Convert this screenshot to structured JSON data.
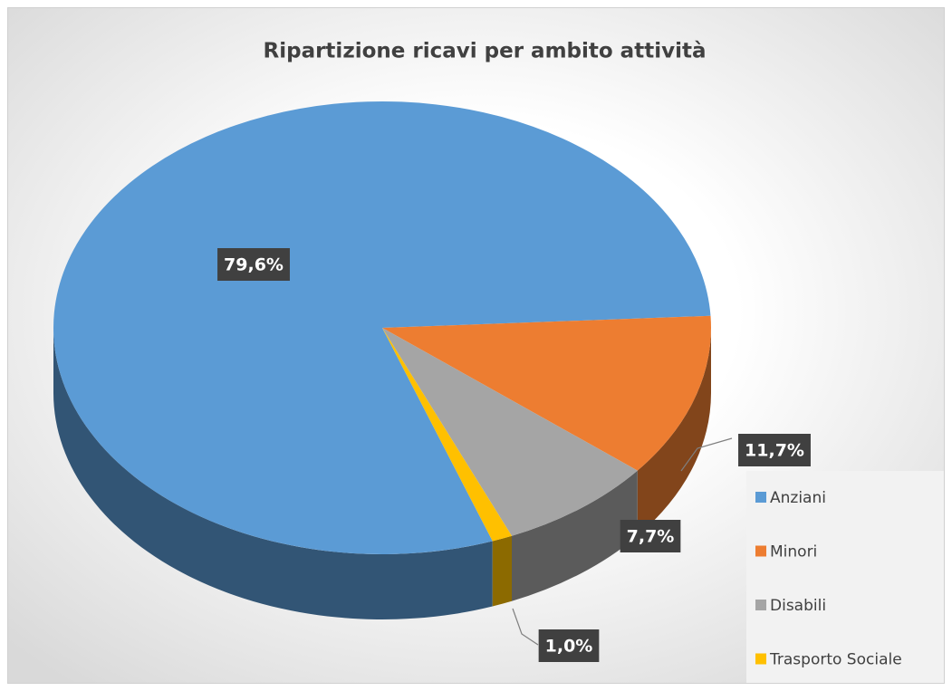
{
  "chart_data": {
    "type": "pie3d",
    "title": "Ripartizione ricavi per ambito attività",
    "categories": [
      "Anziani",
      "Minori",
      "Disabili",
      "Trasporto Sociale"
    ],
    "values": [
      79.6,
      11.7,
      7.7,
      1.0
    ],
    "value_labels": [
      "79,6%",
      "11,7%",
      "7,7%",
      "1,0%"
    ],
    "colors": [
      "#5b9bd5",
      "#ed7d31",
      "#a5a5a5",
      "#ffc000"
    ],
    "legend": "right"
  }
}
